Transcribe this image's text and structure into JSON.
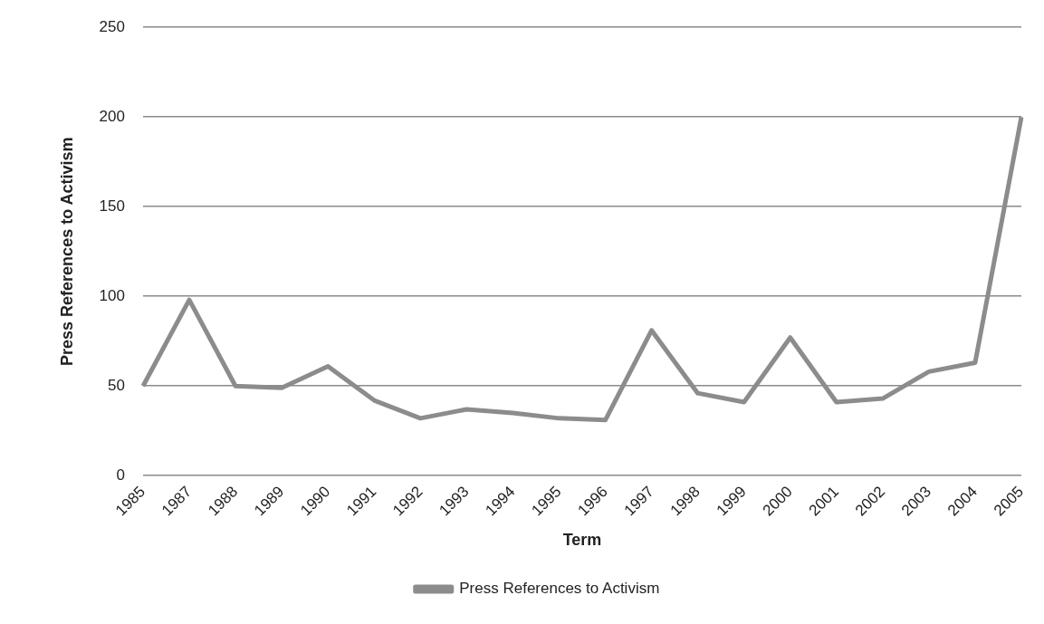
{
  "chart_data": {
    "type": "line",
    "xlabel": "Term",
    "ylabel": "Press References to Activism",
    "categories": [
      "1985",
      "1987",
      "1988",
      "1989",
      "1990",
      "1991",
      "1992",
      "1993",
      "1994",
      "1995",
      "1996",
      "1997",
      "1998",
      "1999",
      "2000",
      "2001",
      "2002",
      "2003",
      "2004",
      "2005"
    ],
    "series": [
      {
        "name": "Press References to Activism",
        "color": "#8c8c8c",
        "values": [
          50,
          98,
          50,
          49,
          61,
          42,
          32,
          37,
          35,
          32,
          31,
          81,
          46,
          41,
          77,
          41,
          43,
          58,
          63,
          200
        ]
      }
    ],
    "ylim": [
      0,
      250
    ],
    "yticks": [
      0,
      50,
      100,
      150,
      200,
      250
    ],
    "grid": "y",
    "legend": "bottom",
    "marker": "none"
  }
}
